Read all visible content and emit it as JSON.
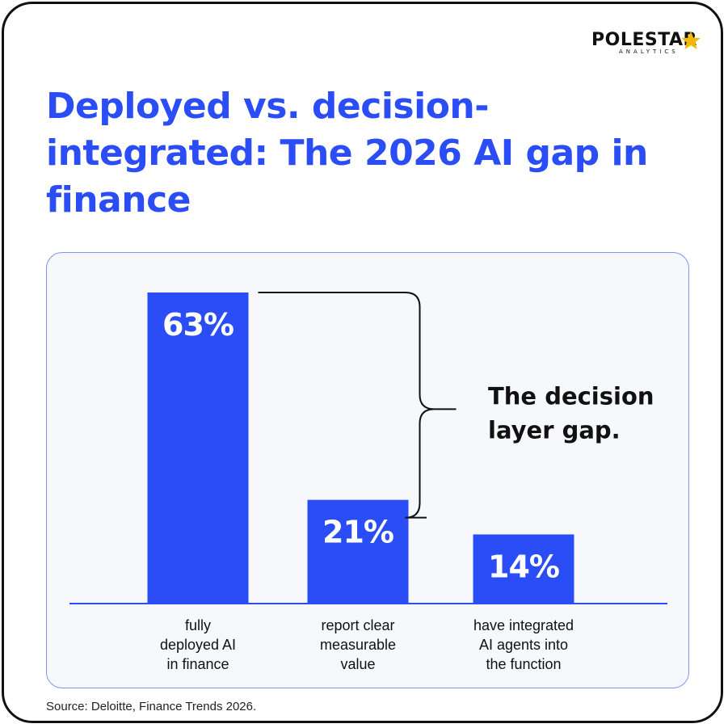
{
  "brand": {
    "name": "POLESTAR",
    "sub": "ANALYTICS",
    "star_color": "#f5b800"
  },
  "title": "Deployed vs. decision-integrated: The 2026 AI gap in finance",
  "source": "Source: Deloitte, Finance Trends 2026.",
  "colors": {
    "accent": "#2a4df5",
    "bar": "#2a4df5",
    "text": "#111111"
  },
  "chart_data": {
    "type": "bar",
    "categories": [
      "fully deployed AI in finance",
      "report clear measurable value",
      "have integrated AI agents into the function"
    ],
    "category_lines": [
      [
        "fully",
        "deployed AI",
        "in finance"
      ],
      [
        "report clear",
        "measurable",
        "value"
      ],
      [
        "have integrated",
        "AI agents into",
        "the function"
      ]
    ],
    "values": [
      63,
      21,
      14
    ],
    "value_labels": [
      "63%",
      "21%",
      "14%"
    ],
    "unit": "%",
    "ylim": [
      0,
      63
    ],
    "grid": false,
    "annotation": {
      "text_lines": [
        "The decision",
        "layer gap."
      ],
      "spans": [
        0,
        1
      ]
    },
    "title": "",
    "xlabel": "",
    "ylabel": ""
  }
}
